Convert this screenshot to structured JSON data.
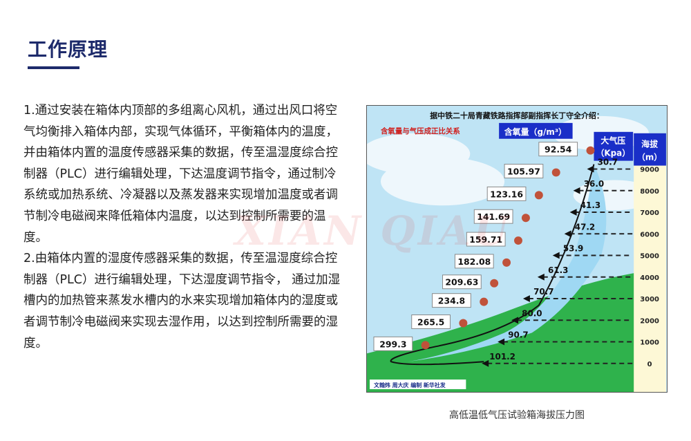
{
  "header": {
    "title": "工作原理"
  },
  "content": {
    "paragraphs": [
      "1.通过安装在箱体内顶部的多组离心风机，通过出风口将空气均衡排入箱体内部，实现气体循环，平衡箱体内的温度，并由箱体内置的温度传感器采集的数据，传至温湿度综合控制器（PLC）进行编辑处理，下达温度调节指令，通过制冷系统或加热系统、冷凝器以及蒸发器来实现增加温度或者调节制冷电磁阀来降低箱体内温度，以达到控制所需要的温度。",
      "2.由箱体内置的湿度传感器采集的数据，传至温湿度综合控制器（PLC）进行编辑处理，下达湿度调节指令， 通过加湿槽内的加热管来蒸发水槽内的水来实现增加箱体内的湿度或者调节制冷电磁阀来实现去湿作用，以达到控制所需要的湿度。"
    ]
  },
  "watermark": "XIAN QIAU",
  "figure": {
    "heading": "据中铁二十局青藏铁路指挥部副指挥长丁守全介绍：",
    "relation_note": "含氧量与气压成正比关系",
    "oxygen_header": "含氧量（g/m³）",
    "pressure_header_line1": "大气压",
    "pressure_header_line2": "（Kpa）",
    "altitude_header_line1": "海拔",
    "altitude_header_line2": "（m）",
    "credit": "文翰炜 周大庆 编制 新华社发",
    "rows": [
      {
        "altitude": "9000",
        "pressure": "30.7",
        "oxygen": "92.54"
      },
      {
        "altitude": "8000",
        "pressure": "36.0",
        "oxygen": "105.97"
      },
      {
        "altitude": "7000",
        "pressure": "41.3",
        "oxygen": "123.16"
      },
      {
        "altitude": "6000",
        "pressure": "47.2",
        "oxygen": "141.69"
      },
      {
        "altitude": "5000",
        "pressure": "53.9",
        "oxygen": "159.71"
      },
      {
        "altitude": "4000",
        "pressure": "61.3",
        "oxygen": "182.08"
      },
      {
        "altitude": "3000",
        "pressure": "70.7",
        "oxygen": "209.63"
      },
      {
        "altitude": "2000",
        "pressure": "80.0",
        "oxygen": "234.8"
      },
      {
        "altitude": "1000",
        "pressure": "90.7",
        "oxygen": "265.5"
      },
      {
        "altitude": "0",
        "pressure": "101.2",
        "oxygen": "299.3"
      }
    ],
    "caption": "高低温低气压试验箱海拔压力图",
    "colors": {
      "sky": "#bfe4f5",
      "ground": "#2fb24c",
      "header_blue": "#1a2fc8",
      "note_red": "#d0201e",
      "scale_bg": "#fdf8d6"
    }
  }
}
